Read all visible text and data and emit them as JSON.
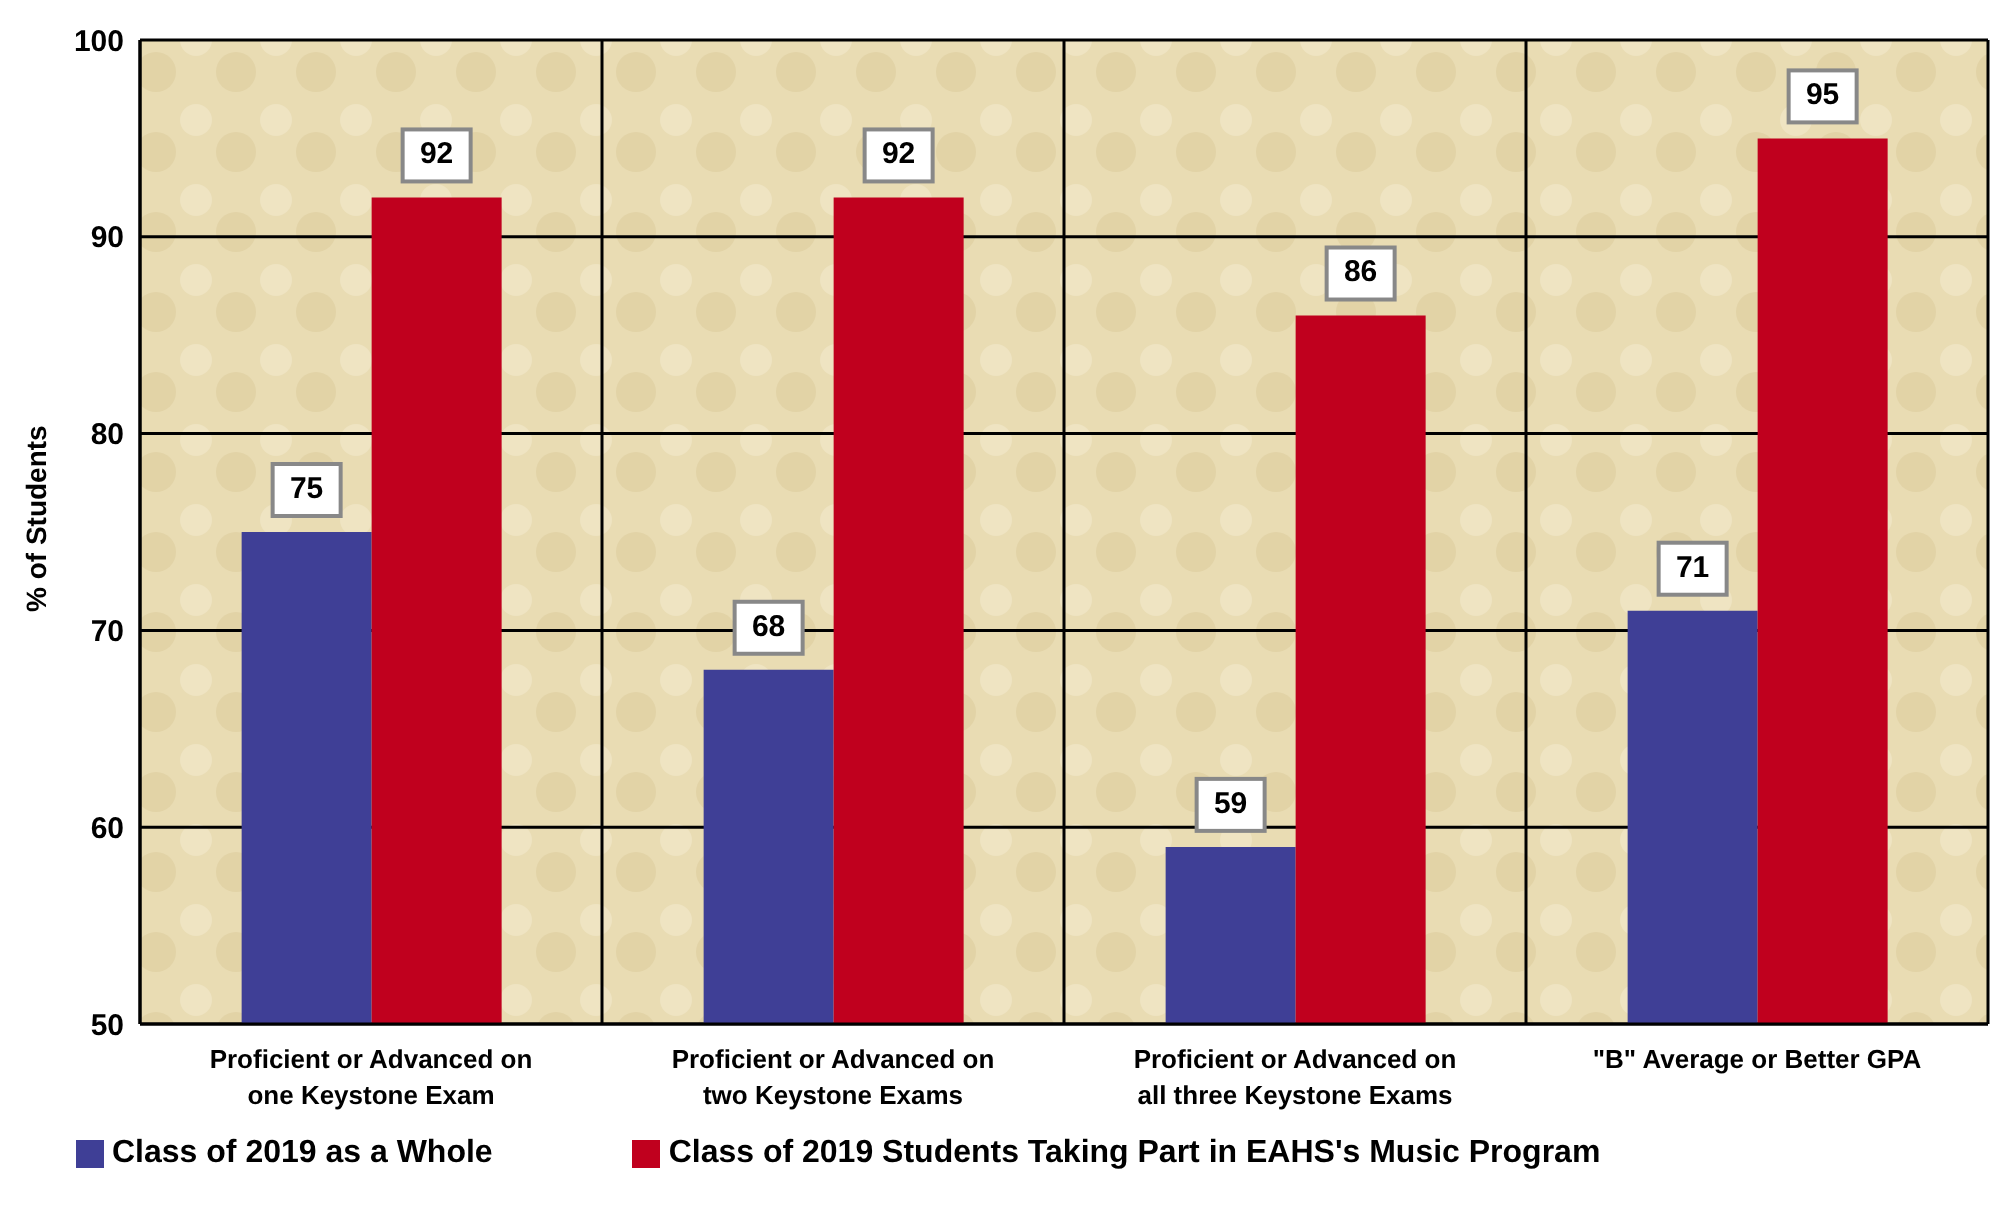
{
  "chart_data": {
    "type": "bar",
    "ylabel": "% of Students",
    "categories": [
      "Proficient or Advanced on one Keystone Exam",
      "Proficient or Advanced on two Keystone Exams",
      "Proficient or Advanced on all three Keystone Exams",
      "\"B\" Average or Better GPA"
    ],
    "series": [
      {
        "name": "Class of 2019 as a Whole",
        "color": "#3f3f96",
        "values": [
          75,
          68,
          59,
          71
        ]
      },
      {
        "name": "Class of 2019 Students Taking Part in EAHS's Music Program",
        "color": "#c0001e",
        "values": [
          92,
          92,
          86,
          95
        ]
      }
    ],
    "ylim": [
      50,
      100
    ],
    "yticks": [
      50,
      60,
      70,
      80,
      90,
      100
    ],
    "grid": true,
    "legend": "bottom left",
    "data_labels": true
  }
}
